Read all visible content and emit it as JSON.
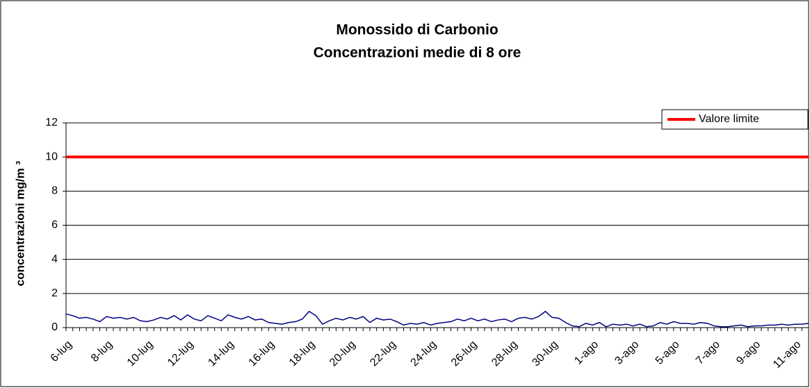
{
  "chart_data": {
    "type": "line",
    "title": "Monossido di Carbonio",
    "subtitle": "Concentrazioni medie di 8 ore",
    "y_label": "concentrazioni mg/m ³",
    "categories": [
      "6-lug",
      null,
      null,
      null,
      null,
      null,
      "8-lug",
      null,
      null,
      null,
      null,
      null,
      "10-lug",
      null,
      null,
      null,
      null,
      null,
      "12-lug",
      null,
      null,
      null,
      null,
      null,
      "14-lug",
      null,
      null,
      null,
      null,
      null,
      "16-lug",
      null,
      null,
      null,
      null,
      null,
      "18-lug",
      null,
      null,
      null,
      null,
      null,
      "20-lug",
      null,
      null,
      null,
      null,
      null,
      "22-lug",
      null,
      null,
      null,
      null,
      null,
      "24-lug",
      null,
      null,
      null,
      null,
      null,
      "26-lug",
      null,
      null,
      null,
      null,
      null,
      "28-lug",
      null,
      null,
      null,
      null,
      null,
      "30-lug",
      null,
      null,
      null,
      null,
      null,
      "1-ago",
      null,
      null,
      null,
      null,
      null,
      "3-ago",
      null,
      null,
      null,
      null,
      null,
      "5-ago",
      null,
      null,
      null,
      null,
      null,
      "7-ago",
      null,
      null,
      null,
      null,
      null,
      "9-ago",
      null,
      null,
      null,
      null,
      null,
      "11-ago",
      null,
      null
    ],
    "series": [
      {
        "color": "#000080",
        "values": [
          0.8,
          0.7,
          0.55,
          0.6,
          0.5,
          0.35,
          0.65,
          0.55,
          0.6,
          0.5,
          0.6,
          0.4,
          0.35,
          0.45,
          0.6,
          0.5,
          0.7,
          0.45,
          0.75,
          0.5,
          0.4,
          0.7,
          0.55,
          0.4,
          0.75,
          0.6,
          0.5,
          0.65,
          0.45,
          0.5,
          0.3,
          0.25,
          0.2,
          0.3,
          0.35,
          0.5,
          0.95,
          0.7,
          0.2,
          0.4,
          0.55,
          0.45,
          0.6,
          0.5,
          0.65,
          0.3,
          0.55,
          0.45,
          0.5,
          0.35,
          0.15,
          0.25,
          0.2,
          0.3,
          0.15,
          0.25,
          0.3,
          0.35,
          0.5,
          0.4,
          0.55,
          0.4,
          0.5,
          0.35,
          0.45,
          0.5,
          0.35,
          0.55,
          0.6,
          0.5,
          0.65,
          0.95,
          0.6,
          0.55,
          0.3,
          0.1,
          0.05,
          0.25,
          0.15,
          0.3,
          0.05,
          0.2,
          0.15,
          0.2,
          0.1,
          0.2,
          0.05,
          0.1,
          0.3,
          0.2,
          0.35,
          0.25,
          0.25,
          0.2,
          0.3,
          0.25,
          0.1,
          0.05,
          0.05,
          0.1,
          0.15,
          0.05,
          0.1,
          0.1,
          0.15,
          0.15,
          0.2,
          0.15,
          0.2,
          0.2,
          0.25
        ]
      }
    ],
    "reference_line": {
      "name": "Valore limite",
      "value": 10,
      "color": "#ff0000"
    },
    "ylim": [
      0,
      12
    ],
    "yticks": [
      0,
      2,
      4,
      6,
      8,
      10,
      12
    ],
    "grid": true,
    "legend": "upper right"
  }
}
